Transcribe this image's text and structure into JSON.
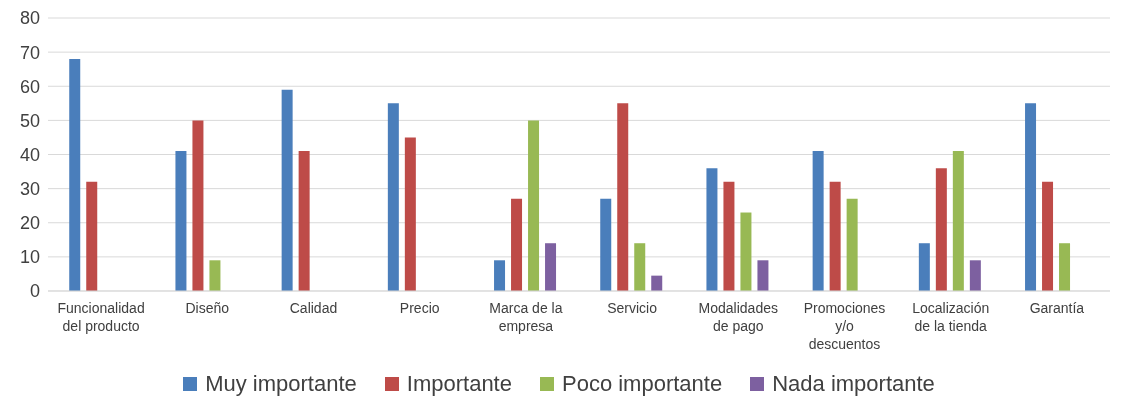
{
  "chart_data": {
    "type": "bar",
    "categories": [
      "Funcionalidad del producto",
      "Diseño",
      "Calidad",
      "Precio",
      "Marca de la empresa",
      "Servicio",
      "Modalidades de pago",
      "Promociones y/o descuentos",
      "Localización de la tienda",
      "Garantía"
    ],
    "series": [
      {
        "name": "Muy importante",
        "color": "#4a7ebb",
        "values": [
          68,
          41,
          59,
          55,
          9,
          27,
          36,
          41,
          14,
          55
        ]
      },
      {
        "name": "Importante",
        "color": "#be4b48",
        "values": [
          32,
          50,
          41,
          45,
          27,
          55,
          32,
          32,
          36,
          32
        ]
      },
      {
        "name": "Poco importante",
        "color": "#98b954",
        "values": [
          null,
          9,
          null,
          null,
          50,
          14,
          23,
          27,
          41,
          14
        ]
      },
      {
        "name": "Nada importante",
        "color": "#7d60a0",
        "values": [
          null,
          null,
          null,
          null,
          14,
          4.5,
          9,
          null,
          9,
          null
        ]
      }
    ],
    "ylim": [
      0,
      80
    ],
    "yticks": [
      0,
      10,
      20,
      30,
      40,
      50,
      60,
      70,
      80
    ],
    "grid": "y",
    "legend": "bottom"
  }
}
